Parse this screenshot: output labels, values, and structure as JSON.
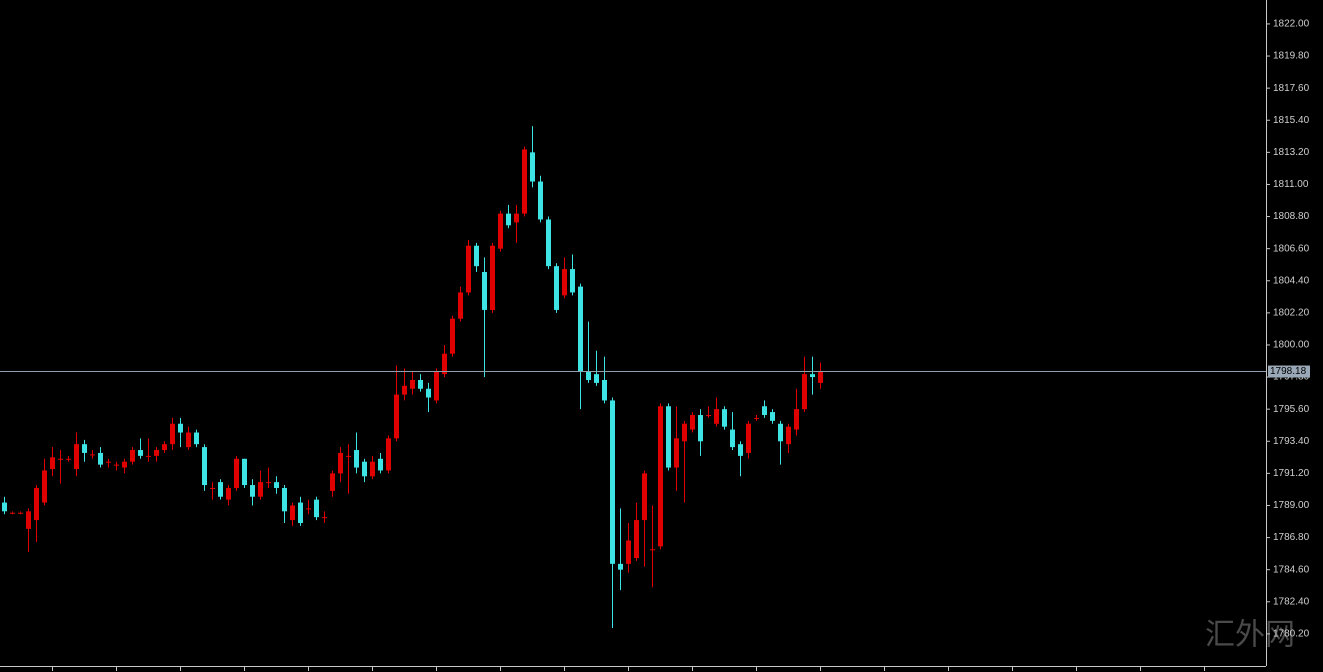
{
  "chart_data": {
    "type": "candlestick",
    "up_color": "#e00000",
    "down_color": "#3ee4e4",
    "ylim": [
      1778.0,
      1823.64
    ],
    "yticks": [
      {
        "value": 1822.0,
        "label": "1822.00"
      },
      {
        "value": 1819.8,
        "label": "1819.80"
      },
      {
        "value": 1817.6,
        "label": "1817.60"
      },
      {
        "value": 1815.4,
        "label": "1815.40"
      },
      {
        "value": 1813.2,
        "label": "1813.20"
      },
      {
        "value": 1811.0,
        "label": "1811.00"
      },
      {
        "value": 1808.8,
        "label": "1808.80"
      },
      {
        "value": 1806.6,
        "label": "1806.60"
      },
      {
        "value": 1804.4,
        "label": "1804.40"
      },
      {
        "value": 1802.2,
        "label": "1802.20"
      },
      {
        "value": 1800.0,
        "label": "1800.00"
      },
      {
        "value": 1797.8,
        "label": "1797.80"
      },
      {
        "value": 1795.6,
        "label": "1795.60"
      },
      {
        "value": 1793.4,
        "label": "1793.40"
      },
      {
        "value": 1791.2,
        "label": "1791.20"
      },
      {
        "value": 1789.0,
        "label": "1789.00"
      },
      {
        "value": 1786.8,
        "label": "1786.80"
      },
      {
        "value": 1784.6,
        "label": "1784.60"
      },
      {
        "value": 1782.4,
        "label": "1782.40"
      },
      {
        "value": 1780.2,
        "label": "1780.20"
      }
    ],
    "last": 1798.18,
    "watermark": "汇外网",
    "open": [
      1789.2,
      1788.5,
      1788.5,
      1787.4,
      1788,
      1789.2,
      1791.5,
      1792.2,
      1792.2,
      1791.5,
      1793.2,
      1792.5,
      1792.6,
      1792,
      1791.8,
      1791.6,
      1792,
      1792.8,
      1792.4,
      1792.4,
      1792.8,
      1793.2,
      1794.6,
      1793,
      1794,
      1793,
      1790.2,
      1790.6,
      1789.4,
      1790.2,
      1792.2,
      1790.4,
      1789.6,
      1790.6,
      1790.6,
      1790.2,
      1788,
      1789.2,
      1788.8,
      1789.4,
      1788.2,
      1790,
      1791.2,
      1792.4,
      1792.8,
      1792,
      1791,
      1792.2,
      1791.4,
      1793.6,
      1796.6,
      1797,
      1797.6,
      1797,
      1796.2,
      1798,
      1799.4,
      1801.8,
      1803.6,
      1806.8,
      1805,
      1802.4,
      1806.6,
      1809,
      1808.4,
      1809,
      1813.2,
      1811.2,
      1808.6,
      1805.4,
      1803.4,
      1805.2,
      1804,
      1798.2,
      1798,
      1797.6,
      1796.2,
      1785,
      1785,
      1785.4,
      1788,
      1786,
      1786.2,
      1795.8,
      1791.6,
      1793.4,
      1794.2,
      1795.2,
      1795.2,
      1794.6,
      1795.6,
      1794.2,
      1793.2,
      1792.6,
      1795,
      1795.8,
      1795.4,
      1794.6,
      1793.2,
      1794.2,
      1795.6,
      1798,
      1797.4
    ],
    "high": [
      1789.6,
      1788.6,
      1788.6,
      1788.8,
      1790.4,
      1792.2,
      1793,
      1792.8,
      1792.4,
      1794,
      1793.5,
      1792.8,
      1793,
      1792.2,
      1792,
      1792.2,
      1793,
      1793.6,
      1793.6,
      1793,
      1793.4,
      1795,
      1795,
      1794.4,
      1794.2,
      1793.2,
      1790.6,
      1790.8,
      1790.4,
      1792.4,
      1792.2,
      1790.8,
      1791.4,
      1791.6,
      1791,
      1790.4,
      1789.2,
      1789.6,
      1789.4,
      1789.6,
      1788.6,
      1791.4,
      1793,
      1793.2,
      1794,
      1792.2,
      1792.4,
      1792.6,
      1793.8,
      1798.6,
      1798.4,
      1798.2,
      1798,
      1797.4,
      1798.4,
      1800,
      1802,
      1804,
      1807.2,
      1807,
      1806,
      1807,
      1809.2,
      1809.6,
      1809.6,
      1813.6,
      1815,
      1811.6,
      1808.8,
      1805.6,
      1806,
      1806.2,
      1804.2,
      1801.6,
      1799.6,
      1799.2,
      1796.4,
      1788.8,
      1787.8,
      1789.2,
      1791.4,
      1789,
      1796,
      1796,
      1795.8,
      1794.8,
      1795.4,
      1795.6,
      1795.8,
      1796.4,
      1795.8,
      1795.4,
      1793.4,
      1794.8,
      1795.2,
      1796.2,
      1795.6,
      1794.8,
      1794.6,
      1797,
      1799.2,
      1799.2,
      1798.8
    ],
    "low": [
      1788.4,
      1788.4,
      1788.4,
      1785.8,
      1786.5,
      1789,
      1791,
      1790.5,
      1792,
      1791,
      1792,
      1792.2,
      1791.6,
      1791.6,
      1791.4,
      1791.2,
      1791.8,
      1792.2,
      1792,
      1792,
      1792.6,
      1792.8,
      1793,
      1792.8,
      1793,
      1790,
      1789.4,
      1789.4,
      1789,
      1790,
      1790.2,
      1789,
      1789.4,
      1790.2,
      1789.8,
      1787.8,
      1787.6,
      1787.6,
      1788.4,
      1788,
      1787.8,
      1789.6,
      1790.6,
      1789.8,
      1791.2,
      1790.6,
      1790.8,
      1791.2,
      1791.2,
      1793.4,
      1796.2,
      1796.6,
      1796.8,
      1795.4,
      1796,
      1797.8,
      1799.2,
      1801.6,
      1803.4,
      1805,
      1797.8,
      1802.2,
      1806.4,
      1808,
      1807,
      1808.8,
      1810.8,
      1808.4,
      1805.2,
      1802.2,
      1803.2,
      1803.4,
      1795.6,
      1797.4,
      1797.2,
      1796,
      1780.6,
      1783.2,
      1784.4,
      1785.2,
      1784.8,
      1783.4,
      1786,
      1791.4,
      1790,
      1789.2,
      1794,
      1792.4,
      1795,
      1794.4,
      1794.2,
      1792.8,
      1791,
      1792.2,
      1794.8,
      1795,
      1794.6,
      1791.8,
      1792.6,
      1793.8,
      1795.4,
      1796.6,
      1797
    ],
    "close": [
      1788.6,
      1788.5,
      1788.5,
      1788.6,
      1790.2,
      1791.4,
      1792.3,
      1792.2,
      1792.2,
      1793.2,
      1792.6,
      1792.5,
      1791.8,
      1792,
      1791.8,
      1792,
      1792.8,
      1792.4,
      1792.4,
      1792.8,
      1793.2,
      1794.6,
      1794,
      1794,
      1793.2,
      1790.4,
      1790.2,
      1789.6,
      1790.2,
      1792.2,
      1790.4,
      1789.6,
      1790.6,
      1790.6,
      1790.2,
      1788.6,
      1789,
      1787.8,
      1788.8,
      1788.2,
      1788.2,
      1791.2,
      1792.6,
      1792.4,
      1791.6,
      1791,
      1792,
      1791.4,
      1793.6,
      1796.6,
      1797.2,
      1797.6,
      1797,
      1796.4,
      1798.2,
      1799.4,
      1801.8,
      1803.6,
      1806.8,
      1805.4,
      1802.4,
      1806.8,
      1809,
      1808.2,
      1809,
      1813.4,
      1811.2,
      1808.6,
      1805.4,
      1802.4,
      1805.2,
      1803.6,
      1798.2,
      1797.6,
      1797.4,
      1796.2,
      1785,
      1784.6,
      1786.6,
      1788,
      1791.2,
      1786,
      1795.8,
      1791.6,
      1793.6,
      1794.6,
      1795.2,
      1793.4,
      1795.2,
      1795.6,
      1794.4,
      1793,
      1792.4,
      1794.6,
      1795,
      1795.2,
      1794.8,
      1793.4,
      1794.4,
      1795.6,
      1798,
      1797.8,
      1798.18
    ]
  }
}
